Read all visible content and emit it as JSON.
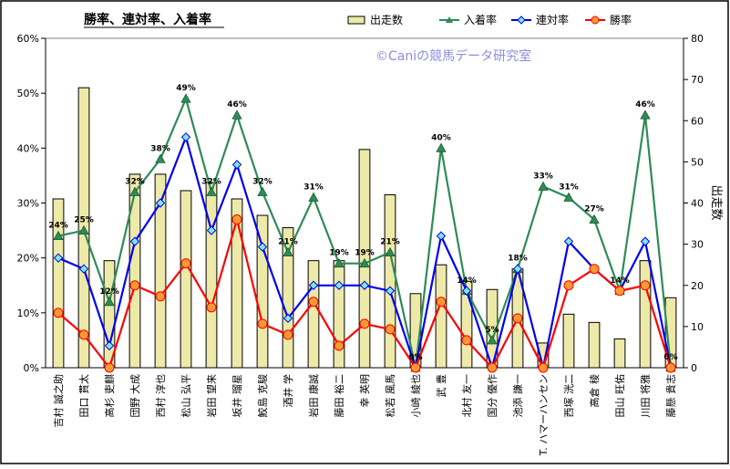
{
  "chart_data": {
    "type": "bar",
    "title": "勝率、連対率、入着率",
    "watermark": "©Caniの競馬データ研究室",
    "categories": [
      "吉村 誠之助",
      "田口 貫太",
      "高杉 吏麒",
      "団野 大成",
      "西村 淳也",
      "松山 弘平",
      "岩田 望来",
      "坂井 瑠星",
      "鮫島 克駿",
      "酒井 学",
      "岩田 康誠",
      "藤田 裕二",
      "幸 英明",
      "松若 風馬",
      "小崎 綾也",
      "武 豊",
      "北村 友一",
      "国分 優作",
      "池添 謙一",
      "T. ハマーハンセン",
      "西塚 洸二",
      "高倉 稜",
      "田山 旺佑",
      "川田 将雅",
      "藤懸 貴志"
    ],
    "series": [
      {
        "name": "出走数",
        "axis": "right",
        "values": [
          41,
          68,
          26,
          47,
          47,
          43,
          45,
          41,
          37,
          34,
          26,
          26,
          53,
          42,
          18,
          25,
          21,
          19,
          24,
          6,
          13,
          11,
          7,
          26,
          17
        ]
      },
      {
        "name": "入着率",
        "axis": "left",
        "values": [
          24,
          25,
          12,
          32,
          38,
          49,
          32,
          46,
          32,
          21,
          31,
          19,
          19,
          21,
          0,
          40,
          14,
          5,
          18,
          33,
          31,
          27,
          14,
          46,
          0
        ],
        "labels": [
          "24%",
          "25%",
          "12%",
          "32%",
          "38%",
          "49%",
          "32%",
          "46%",
          "32%",
          "21%",
          "31%",
          "19%",
          "19%",
          "21%",
          "0%",
          "40%",
          "14%",
          "5%",
          "18%",
          "33%",
          "31%",
          "27%",
          "14%",
          "46%",
          "0%"
        ]
      },
      {
        "name": "連対率",
        "axis": "left",
        "values": [
          20,
          18,
          4,
          23,
          30,
          42,
          25,
          37,
          22,
          9,
          15,
          15,
          15,
          14,
          0,
          24,
          14,
          0,
          18,
          0,
          23,
          18,
          14,
          23,
          0
        ]
      },
      {
        "name": "勝率",
        "axis": "left",
        "values": [
          10,
          6,
          0,
          15,
          13,
          19,
          11,
          27,
          8,
          6,
          12,
          4,
          8,
          7,
          0,
          12,
          5,
          0,
          9,
          0,
          15,
          18,
          14,
          15,
          0
        ]
      }
    ],
    "left_axis": {
      "ylim": [
        0,
        60
      ],
      "ticks": [
        "0%",
        "10%",
        "20%",
        "30%",
        "40%",
        "50%",
        "60%"
      ]
    },
    "right_axis": {
      "label": "出走数",
      "ylim": [
        0,
        80
      ],
      "ticks": [
        "0",
        "10",
        "20",
        "30",
        "40",
        "50",
        "60",
        "70",
        "80"
      ]
    },
    "legend_position": "top",
    "grid": false,
    "colors": {
      "bar_fill": "#ede9a8",
      "bar_stroke": "#000000",
      "入着率": "#2e8b57",
      "連対率": "#0000ee",
      "勝率": "#ff0000",
      "連対率_marker": "#7ee8f2",
      "勝率_marker": "#ff9933",
      "plot_bg": "#ffffff",
      "outer_bg": "#ffffff",
      "frame": "#000000",
      "watermark": "#8c8ce0"
    }
  }
}
